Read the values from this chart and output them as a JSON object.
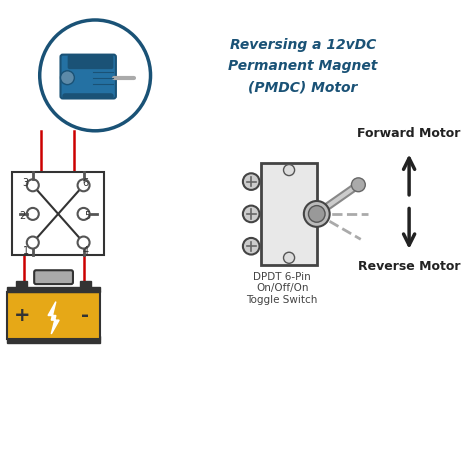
{
  "title_line1": "Reversing a 12vDC",
  "title_line2": "Permanent Magnet",
  "title_line3": "(PMDC) Motor",
  "title_color": "#1a5276",
  "bg_color": "#ffffff",
  "wire_color": "#cc0000",
  "switch_label": "DPDT 6-Pin\nOn/Off/On\nToggle Switch",
  "forward_label": "Forward Motor",
  "reverse_label": "Reverse Motor",
  "battery_color": "#e6a817",
  "battery_dark": "#333333",
  "motor_circle_color": "#1a5276",
  "switch_body_color": "#555555",
  "switch_outline_color": "#333333"
}
